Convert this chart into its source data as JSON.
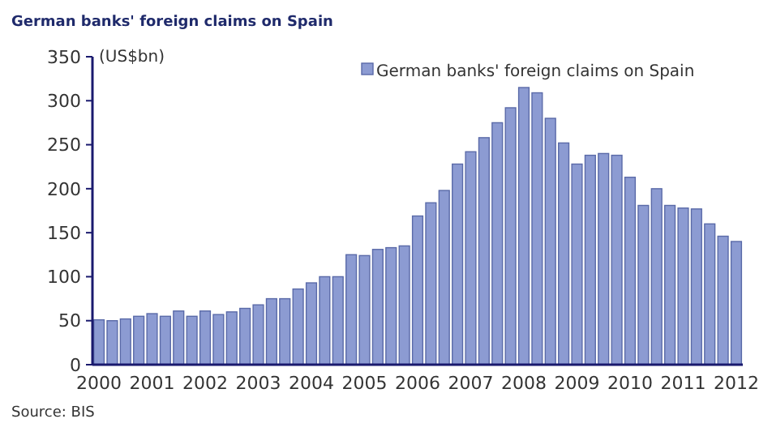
{
  "chart_data": {
    "type": "bar",
    "title": "German banks' foreign claims on Spain",
    "ylabel": "(US$bn)",
    "categories": [
      "2000",
      null,
      null,
      null,
      "2001",
      null,
      null,
      null,
      "2002",
      null,
      null,
      null,
      "2003",
      null,
      null,
      null,
      "2004",
      null,
      null,
      null,
      "2005",
      null,
      null,
      null,
      "2006",
      null,
      null,
      null,
      "2007",
      null,
      null,
      null,
      "2008",
      null,
      null,
      null,
      "2009",
      null,
      null,
      null,
      "2010",
      null,
      null,
      null,
      "2011",
      null,
      null,
      null,
      "2012"
    ],
    "series": [
      {
        "name": "German banks' foreign claims on Spain",
        "color": "#8c9bd2",
        "values": [
          51,
          50,
          52,
          55,
          58,
          55,
          61,
          55,
          61,
          57,
          60,
          64,
          68,
          75,
          75,
          86,
          93,
          100,
          100,
          125,
          124,
          131,
          133,
          135,
          169,
          184,
          198,
          228,
          242,
          258,
          275,
          292,
          315,
          309,
          280,
          252,
          228,
          238,
          240,
          238,
          213,
          181,
          200,
          181,
          178,
          177,
          160,
          146,
          140
        ]
      }
    ],
    "ylim": [
      0,
      350
    ],
    "yticks": [
      0,
      50,
      100,
      150,
      200,
      250,
      300,
      350
    ],
    "grid": false,
    "legend": "top right",
    "annotations": [
      "Source: BIS"
    ]
  }
}
